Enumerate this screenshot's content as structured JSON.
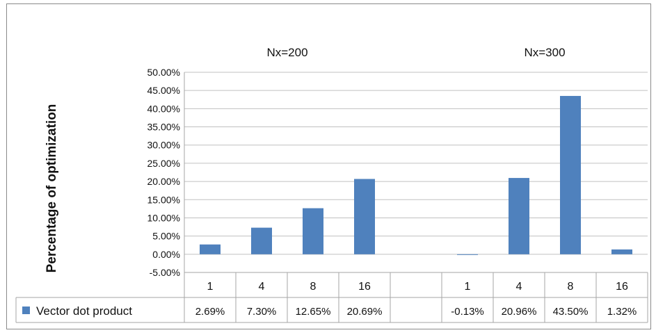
{
  "chart_data": {
    "type": "bar",
    "ylabel": "Percentage of optimization",
    "ylim": [
      -0.05,
      0.5
    ],
    "y_ticks": [
      "50.00%",
      "45.00%",
      "40.00%",
      "35.00%",
      "30.00%",
      "25.00%",
      "20.00%",
      "15.00%",
      "10.00%",
      "5.00%",
      "0.00%",
      "-5.00%"
    ],
    "y_tick_values": [
      0.5,
      0.45,
      0.4,
      0.35,
      0.3,
      0.25,
      0.2,
      0.15,
      0.1,
      0.05,
      0.0,
      -0.05
    ],
    "grid": true,
    "bar_color": "#4f81bd",
    "groups": [
      {
        "title": "Nx=200",
        "categories": [
          "1",
          "4",
          "8",
          "16"
        ],
        "values": [
          0.0269,
          0.073,
          0.1265,
          0.2069
        ],
        "value_labels": [
          "2.69%",
          "7.30%",
          "12.65%",
          "20.69%"
        ]
      },
      {
        "title": "",
        "categories": [
          ""
        ],
        "values": [
          null
        ],
        "value_labels": [
          ""
        ]
      },
      {
        "title": "Nx=300",
        "categories": [
          "1",
          "4",
          "8",
          "16"
        ],
        "values": [
          -0.0013,
          0.2096,
          0.435,
          0.0132
        ],
        "value_labels": [
          "-0.13%",
          "20.96%",
          "43.50%",
          "1.32%"
        ]
      }
    ],
    "series": [
      {
        "name": "Vector dot product"
      }
    ]
  }
}
